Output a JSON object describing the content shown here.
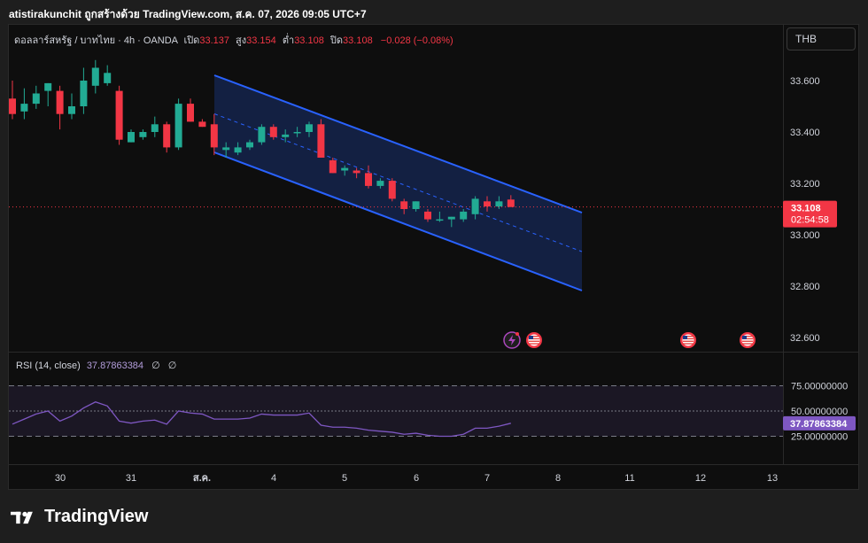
{
  "header": {
    "caption": "atistirakunchit ถูกสร้างด้วย TradingView.com, ส.ค. 07, 2026 09:05 UTC+7"
  },
  "legend": {
    "symbol": "ดอลลาร์สหรัฐ / บาทไทย · 4h · OANDA",
    "open_label": "เปิด",
    "open": "33.137",
    "high_label": "สูง",
    "high": "33.154",
    "low_label": "ต่ำ",
    "low": "33.108",
    "close_label": "ปิด",
    "close": "33.108",
    "change": "−0.028 (−0.08%)"
  },
  "currency_button": "THB",
  "price_axis": {
    "ticks": [
      "33.600",
      "33.400",
      "33.200",
      "33.000",
      "32.800",
      "32.600"
    ],
    "last_price": "33.108",
    "countdown": "02:54:58"
  },
  "time_axis": {
    "ticks": [
      "30",
      "31",
      "ส.ค.",
      "4",
      "5",
      "6",
      "7",
      "8",
      "11",
      "12",
      "13"
    ]
  },
  "rsi": {
    "label": "RSI (14, close)",
    "value": "37.87863384",
    "extra1": "∅",
    "extra2": "∅",
    "ticks": [
      "75.00000000",
      "50.00000000",
      "25.00000000"
    ],
    "last_badge": "37.87863384"
  },
  "brand": "TradingView",
  "colors": {
    "up": "#22ab94",
    "down": "#f23645",
    "channel": "#2962ff",
    "rsi_line": "#7e57c2",
    "background": "#0e0e0e"
  },
  "event_icons": [
    "lightning-event-icon",
    "us-flag-icon",
    "us-flag-icon",
    "us-flag-icon"
  ],
  "chart_data": {
    "type": "candlestick",
    "title": "ดอลลาร์สหรัฐ / บาทไทย · 4h · OANDA",
    "ylim": [
      32.55,
      33.72
    ],
    "candles": [
      {
        "x": "29",
        "o": 33.53,
        "h": 33.6,
        "l": 33.45,
        "c": 33.47
      },
      {
        "x": "29",
        "o": 33.48,
        "h": 33.57,
        "l": 33.45,
        "c": 33.51
      },
      {
        "x": "29",
        "o": 33.51,
        "h": 33.58,
        "l": 33.49,
        "c": 33.55
      },
      {
        "x": "30",
        "o": 33.56,
        "h": 33.59,
        "l": 33.5,
        "c": 33.59
      },
      {
        "x": "30",
        "o": 33.56,
        "h": 33.58,
        "l": 33.41,
        "c": 33.47
      },
      {
        "x": "30",
        "o": 33.47,
        "h": 33.55,
        "l": 33.45,
        "c": 33.5
      },
      {
        "x": "30",
        "o": 33.5,
        "h": 33.65,
        "l": 33.47,
        "c": 33.6
      },
      {
        "x": "31",
        "o": 33.58,
        "h": 33.68,
        "l": 33.55,
        "c": 33.65
      },
      {
        "x": "31",
        "o": 33.59,
        "h": 33.66,
        "l": 33.58,
        "c": 33.63
      },
      {
        "x": "31",
        "o": 33.56,
        "h": 33.58,
        "l": 33.35,
        "c": 33.37
      },
      {
        "x": "31",
        "o": 33.36,
        "h": 33.41,
        "l": 33.36,
        "c": 33.4
      },
      {
        "x": "31",
        "o": 33.38,
        "h": 33.41,
        "l": 33.37,
        "c": 33.4
      },
      {
        "x": "1",
        "o": 33.4,
        "h": 33.46,
        "l": 33.38,
        "c": 33.43
      },
      {
        "x": "1",
        "o": 33.43,
        "h": 33.44,
        "l": 33.32,
        "c": 33.34
      },
      {
        "x": "1",
        "o": 33.34,
        "h": 33.53,
        "l": 33.33,
        "c": 33.51
      },
      {
        "x": "1",
        "o": 33.51,
        "h": 33.53,
        "l": 33.44,
        "c": 33.44
      },
      {
        "x": "3",
        "o": 33.44,
        "h": 33.45,
        "l": 33.42,
        "c": 33.42
      },
      {
        "x": "3",
        "o": 33.43,
        "h": 33.47,
        "l": 33.31,
        "c": 33.34
      },
      {
        "x": "3",
        "o": 33.33,
        "h": 33.36,
        "l": 33.3,
        "c": 33.34
      },
      {
        "x": "4",
        "o": 33.32,
        "h": 33.36,
        "l": 33.31,
        "c": 33.34
      },
      {
        "x": "4",
        "o": 33.34,
        "h": 33.37,
        "l": 33.33,
        "c": 33.36
      },
      {
        "x": "4",
        "o": 33.36,
        "h": 33.43,
        "l": 33.35,
        "c": 33.42
      },
      {
        "x": "4",
        "o": 33.42,
        "h": 33.43,
        "l": 33.37,
        "c": 33.38
      },
      {
        "x": "4",
        "o": 33.38,
        "h": 33.41,
        "l": 33.36,
        "c": 33.39
      },
      {
        "x": "5",
        "o": 33.4,
        "h": 33.42,
        "l": 33.38,
        "c": 33.4
      },
      {
        "x": "5",
        "o": 33.4,
        "h": 33.44,
        "l": 33.38,
        "c": 33.43
      },
      {
        "x": "5",
        "o": 33.43,
        "h": 33.45,
        "l": 33.3,
        "c": 33.3
      },
      {
        "x": "5",
        "o": 33.29,
        "h": 33.3,
        "l": 33.24,
        "c": 33.24
      },
      {
        "x": "5",
        "o": 33.25,
        "h": 33.27,
        "l": 33.23,
        "c": 33.26
      },
      {
        "x": "5",
        "o": 33.25,
        "h": 33.26,
        "l": 33.22,
        "c": 33.24
      },
      {
        "x": "6",
        "o": 33.24,
        "h": 33.27,
        "l": 33.18,
        "c": 33.19
      },
      {
        "x": "6",
        "o": 33.19,
        "h": 33.22,
        "l": 33.18,
        "c": 33.21
      },
      {
        "x": "6",
        "o": 33.21,
        "h": 33.22,
        "l": 33.13,
        "c": 33.14
      },
      {
        "x": "6",
        "o": 33.13,
        "h": 33.14,
        "l": 33.08,
        "c": 33.1
      },
      {
        "x": "6",
        "o": 33.1,
        "h": 33.13,
        "l": 33.09,
        "c": 33.13
      },
      {
        "x": "6",
        "o": 33.09,
        "h": 33.1,
        "l": 33.05,
        "c": 33.06
      },
      {
        "x": "7",
        "o": 33.06,
        "h": 33.09,
        "l": 33.05,
        "c": 33.06
      },
      {
        "x": "7",
        "o": 33.06,
        "h": 33.07,
        "l": 33.03,
        "c": 33.07
      },
      {
        "x": "7",
        "o": 33.06,
        "h": 33.1,
        "l": 33.05,
        "c": 33.09
      },
      {
        "x": "7",
        "o": 33.08,
        "h": 33.15,
        "l": 33.06,
        "c": 33.14
      },
      {
        "x": "7",
        "o": 33.13,
        "h": 33.15,
        "l": 33.09,
        "c": 33.11
      },
      {
        "x": "7",
        "o": 33.11,
        "h": 33.15,
        "l": 33.1,
        "c": 33.13
      },
      {
        "x": "7",
        "o": 33.137,
        "h": 33.154,
        "l": 33.108,
        "c": 33.108
      }
    ],
    "rsi": {
      "label": "RSI (14, close)",
      "levels": [
        75,
        50,
        25
      ],
      "values": [
        37,
        42,
        47,
        50,
        40,
        45,
        53,
        59,
        55,
        40,
        38,
        40,
        41,
        37,
        50,
        48,
        47,
        42,
        42,
        42,
        43,
        47,
        46,
        46,
        46,
        48,
        36,
        34,
        34,
        33,
        31,
        30,
        29,
        27,
        28,
        26,
        25,
        25,
        27,
        33,
        33,
        35,
        37.87863384
      ]
    }
  }
}
